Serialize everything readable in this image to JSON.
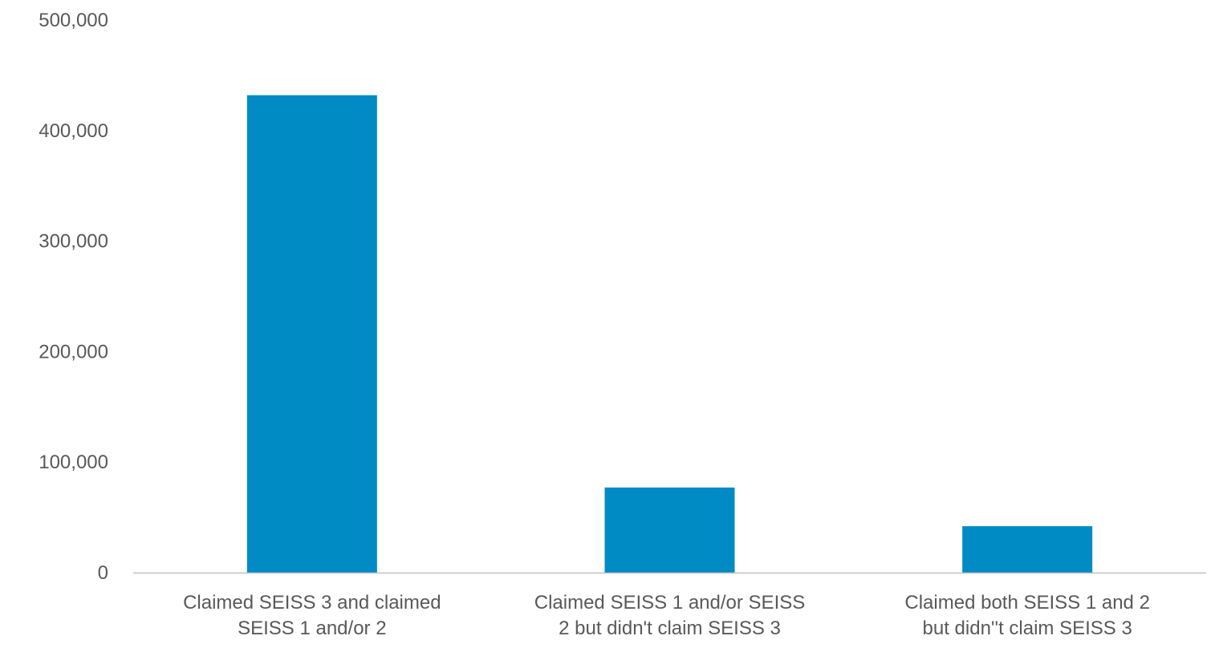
{
  "chart_data": {
    "type": "bar",
    "title": "",
    "xlabel": "",
    "ylabel": "",
    "categories": [
      [
        "Claimed SEISS 3 and claimed",
        "SEISS 1 and/or 2"
      ],
      [
        "Claimed SEISS 1 and/or SEISS",
        "2 but didn't claim SEISS 3"
      ],
      [
        "Claimed both SEISS 1 and 2",
        "but didn''t claim SEISS 3"
      ]
    ],
    "values": [
      432000,
      77000,
      42000
    ],
    "ylim": [
      0,
      500000
    ],
    "yticks": [
      "0",
      "100,000",
      "200,000",
      "300,000",
      "400,000",
      "500,000"
    ],
    "ytick_values": [
      0,
      100000,
      200000,
      300000,
      400000,
      500000
    ],
    "grid": false,
    "legend": "none",
    "bar_color": "#008BC4",
    "axis_color": "#BFBFBF",
    "text_color": "#595959"
  }
}
